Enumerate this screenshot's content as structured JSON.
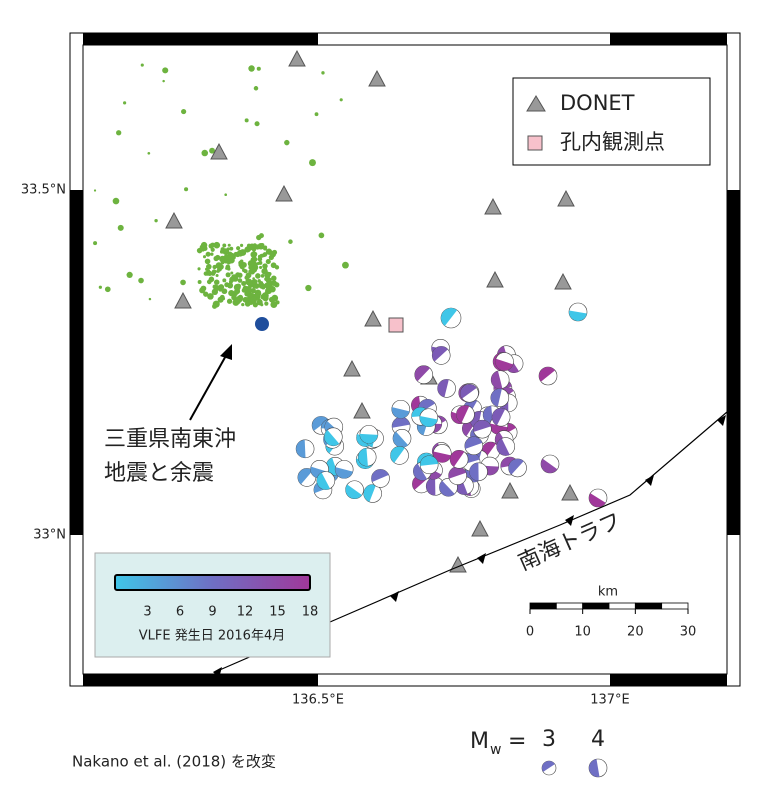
{
  "axes": {
    "lat_labels": [
      "33.5°N",
      "33°N"
    ],
    "lon_labels": [
      "136.5°E",
      "137°E"
    ]
  },
  "legend": {
    "items": [
      "DONET",
      "孔内観測点"
    ]
  },
  "annotations": {
    "event": [
      "三重県南東沖",
      "地震と余震"
    ],
    "trough": "南海トラフ"
  },
  "colorbar": {
    "ticks": [
      3,
      6,
      9,
      12,
      15,
      18
    ],
    "label": "VLFE 発生日 2016年4月"
  },
  "scale": {
    "unit": "km",
    "ticks": [
      0,
      10,
      20,
      30
    ]
  },
  "magnitude": {
    "symbol": "M",
    "subscript": "w",
    "equals": "=",
    "values": [
      3,
      4
    ]
  },
  "credit": "Nakano et al. (2018) を改変"
}
